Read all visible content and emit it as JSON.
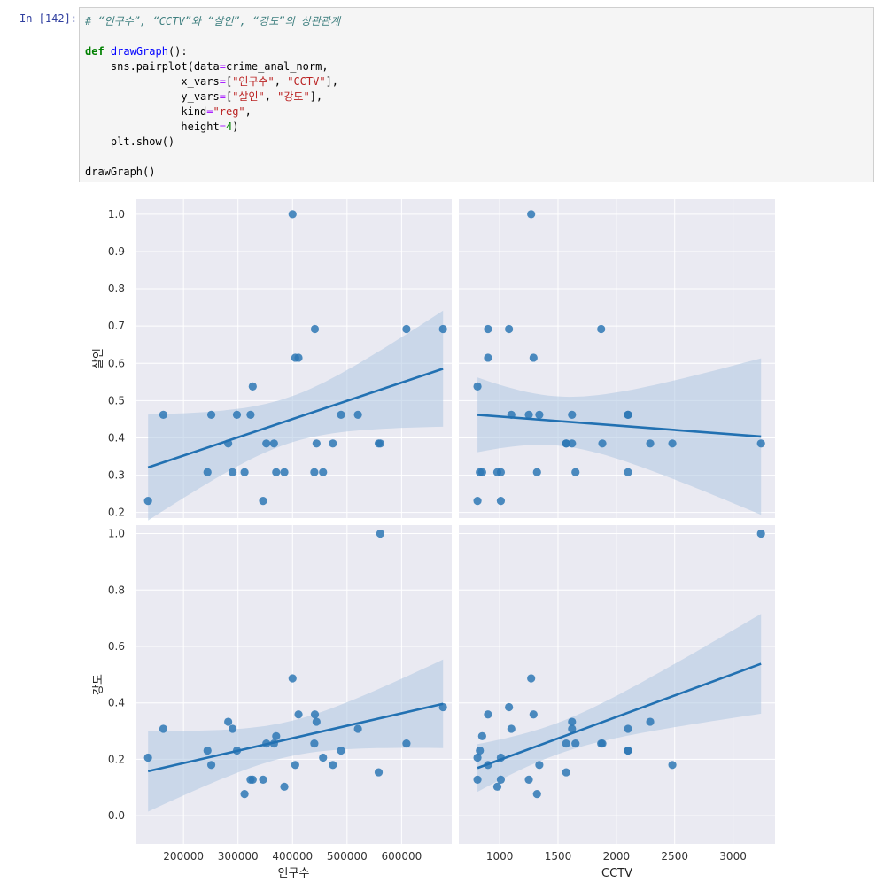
{
  "notebook": {
    "prompt": "In [142]:",
    "code": {
      "comment": "# “인구수”, “CCTV”와 “살인”, “강도”의 상관관계",
      "def_kw": "def",
      "fn_name": "drawGraph",
      "def_rest": "():",
      "l_pair": "    sns.pairplot(data",
      "l_pair_rest": "crime_anal_norm,",
      "l_x": "               x_vars",
      "l_x_v1": "\"인구수\"",
      "l_x_v2": "\"CCTV\"",
      "l_y": "               y_vars",
      "l_y_v1": "\"살인\"",
      "l_y_v2": "\"강도\"",
      "l_kind": "               kind",
      "l_kind_v": "\"reg\"",
      "l_height": "               height",
      "l_height_v": "4",
      "l_show": "    plt.show()",
      "l_call": "drawGraph()"
    }
  },
  "colors": {
    "panel_bg": "#eaeaf2",
    "grid": "#ffffff",
    "point": "#2e78b5",
    "line": "#2271b2",
    "band": "#aec7e2"
  },
  "chart_data": {
    "type": "scatter",
    "subtype": "pairplot-reg",
    "x_vars": [
      "인구수",
      "CCTV"
    ],
    "y_vars": [
      "살인",
      "강도"
    ],
    "xlim": {
      "인구수": [
        112000,
        692000
      ],
      "CCTV": [
        650,
        3360
      ]
    },
    "ylim": {
      "살인": [
        0.185,
        1.04
      ],
      "강도": [
        -0.1,
        1.03
      ]
    },
    "xticks": {
      "인구수": [
        200000,
        300000,
        400000,
        500000,
        600000
      ],
      "CCTV": [
        1000,
        1500,
        2000,
        2500,
        3000
      ]
    },
    "xticklabels": {
      "인구수": [
        "200000",
        "300000",
        "400000",
        "500000",
        "600000"
      ],
      "CCTV": [
        "1000",
        "1500",
        "2000",
        "2500",
        "3000"
      ]
    },
    "yticks": {
      "살인": [
        0.2,
        0.3,
        0.4,
        0.5,
        0.6,
        0.7,
        0.8,
        0.9,
        1.0
      ],
      "강도": [
        0.0,
        0.2,
        0.4,
        0.6,
        0.8,
        1.0
      ]
    },
    "yticklabels": {
      "살인": [
        "0.2",
        "0.3",
        "0.4",
        "0.5",
        "0.6",
        "0.7",
        "0.8",
        "0.9",
        "1.0"
      ],
      "강도": [
        "0.0",
        "0.2",
        "0.4",
        "0.6",
        "0.8",
        "1.0"
      ]
    },
    "districts": [
      {
        "pop": 135000,
        "cctv": 810,
        "murder": 0.231,
        "robbery": 0.206
      },
      {
        "pop": 163000,
        "cctv": 1100,
        "murder": 0.462,
        "robbery": 0.308
      },
      {
        "pop": 244000,
        "cctv": 830,
        "murder": 0.308,
        "robbery": 0.231
      },
      {
        "pop": 251000,
        "cctv": 1340,
        "murder": 0.462,
        "robbery": 0.18
      },
      {
        "pop": 312000,
        "cctv": 1320,
        "murder": 0.308,
        "robbery": 0.077
      },
      {
        "pop": 323000,
        "cctv": 1250,
        "murder": 0.462,
        "robbery": 0.128
      },
      {
        "pop": 327000,
        "cctv": 810,
        "murder": 0.538,
        "robbery": 0.128
      },
      {
        "pop": 346000,
        "cctv": 1010,
        "murder": 0.231,
        "robbery": 0.128
      },
      {
        "pop": 366000,
        "cctv": 1570,
        "murder": 0.385,
        "robbery": 0.256
      },
      {
        "pop": 370000,
        "cctv": 850,
        "murder": 0.308,
        "robbery": 0.282
      },
      {
        "pop": 385000,
        "cctv": 980,
        "murder": 0.308,
        "robbery": 0.103
      },
      {
        "pop": 400000,
        "cctv": 1270,
        "murder": 1.0,
        "robbery": 0.487
      },
      {
        "pop": 405000,
        "cctv": 900,
        "murder": 0.615,
        "robbery": 0.18
      },
      {
        "pop": 411000,
        "cctv": 1290,
        "murder": 0.615,
        "robbery": 0.359
      },
      {
        "pop": 440000,
        "cctv": 1650,
        "murder": 0.308,
        "robbery": 0.256
      },
      {
        "pop": 441000,
        "cctv": 900,
        "murder": 0.692,
        "robbery": 0.359
      },
      {
        "pop": 444000,
        "cctv": 1620,
        "murder": 0.385,
        "robbery": 0.333
      },
      {
        "pop": 456000,
        "cctv": 1010,
        "murder": 0.308,
        "robbery": 0.206
      },
      {
        "pop": 474000,
        "cctv": 2480,
        "murder": 0.385,
        "robbery": 0.18
      },
      {
        "pop": 489000,
        "cctv": 2100,
        "murder": 0.462,
        "robbery": 0.231
      },
      {
        "pop": 520000,
        "cctv": 1620,
        "murder": 0.462,
        "robbery": 0.308
      },
      {
        "pop": 558000,
        "cctv": 1570,
        "murder": 0.385,
        "robbery": 0.154
      },
      {
        "pop": 561000,
        "cctv": 3240,
        "murder": 0.385,
        "robbery": 1.0
      },
      {
        "pop": 609000,
        "cctv": 1870,
        "murder": 0.692,
        "robbery": 0.256
      },
      {
        "pop": 676000,
        "cctv": 1080,
        "murder": 0.692,
        "robbery": 0.385
      },
      {
        "pop": 352000,
        "cctv": 1880,
        "murder": 0.385,
        "robbery": 0.256
      },
      {
        "pop": 298000,
        "cctv": 2100,
        "murder": 0.462,
        "robbery": 0.231
      },
      {
        "pop": 282000,
        "cctv": 2290,
        "murder": 0.385,
        "robbery": 0.333
      },
      {
        "pop": 290000,
        "cctv": 2100,
        "murder": 0.308,
        "robbery": 0.308
      }
    ]
  }
}
